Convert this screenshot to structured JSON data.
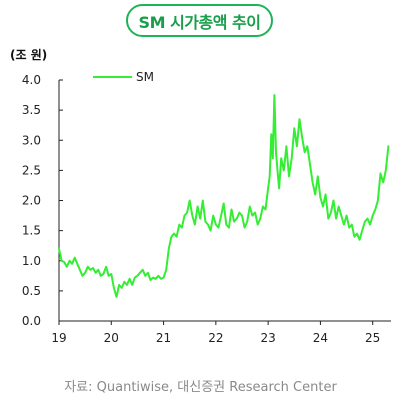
{
  "title": "SM 시가총액 추이",
  "unit": "(조 원)",
  "source": "자료: Quantiwise, 대신증권 Research Center",
  "accent_color": "#1eb35a",
  "chart_data": {
    "type": "line",
    "title": "SM 시가총액 추이",
    "ylabel": "(조 원)",
    "xlabel": "",
    "ylim": [
      0,
      4
    ],
    "yticks": [
      0.0,
      0.5,
      1.0,
      1.5,
      2.0,
      2.5,
      3.0,
      3.5,
      4.0
    ],
    "ytick_labels": [
      "0.0",
      "0.5",
      "1.0",
      "1.5",
      "2.0",
      "2.5",
      "3.0",
      "3.5",
      "4.0"
    ],
    "xlim": [
      2019.0,
      2025.35
    ],
    "xticks": [
      2019,
      2020,
      2021,
      2022,
      2023,
      2024,
      2025
    ],
    "xtick_labels": [
      "19",
      "20",
      "21",
      "22",
      "23",
      "24",
      "25"
    ],
    "grid": false,
    "legend_position": "top-left",
    "series": [
      {
        "name": "SM",
        "color": "#33ee33",
        "x": [
          2019.0,
          2019.05,
          2019.1,
          2019.15,
          2019.2,
          2019.25,
          2019.3,
          2019.35,
          2019.4,
          2019.45,
          2019.5,
          2019.55,
          2019.6,
          2019.65,
          2019.7,
          2019.75,
          2019.8,
          2019.85,
          2019.9,
          2019.95,
          2020.0,
          2020.05,
          2020.1,
          2020.15,
          2020.2,
          2020.25,
          2020.3,
          2020.35,
          2020.4,
          2020.45,
          2020.5,
          2020.55,
          2020.6,
          2020.65,
          2020.7,
          2020.75,
          2020.8,
          2020.85,
          2020.9,
          2020.95,
          2021.0,
          2021.05,
          2021.1,
          2021.15,
          2021.2,
          2021.25,
          2021.3,
          2021.35,
          2021.4,
          2021.45,
          2021.5,
          2021.55,
          2021.6,
          2021.65,
          2021.7,
          2021.75,
          2021.8,
          2021.85,
          2021.9,
          2021.95,
          2022.0,
          2022.05,
          2022.1,
          2022.15,
          2022.2,
          2022.25,
          2022.3,
          2022.35,
          2022.4,
          2022.45,
          2022.5,
          2022.55,
          2022.6,
          2022.65,
          2022.7,
          2022.75,
          2022.8,
          2022.85,
          2022.9,
          2022.95,
          2023.0,
          2023.03,
          2023.06,
          2023.09,
          2023.12,
          2023.15,
          2023.18,
          2023.21,
          2023.25,
          2023.3,
          2023.35,
          2023.4,
          2023.45,
          2023.5,
          2023.55,
          2023.6,
          2023.65,
          2023.7,
          2023.75,
          2023.8,
          2023.85,
          2023.9,
          2023.95,
          2024.0,
          2024.05,
          2024.1,
          2024.15,
          2024.2,
          2024.25,
          2024.3,
          2024.35,
          2024.4,
          2024.45,
          2024.5,
          2024.55,
          2024.6,
          2024.65,
          2024.7,
          2024.75,
          2024.8,
          2024.85,
          2024.9,
          2024.95,
          2025.0,
          2025.05,
          2025.1,
          2025.15,
          2025.2,
          2025.25,
          2025.3
        ],
        "y": [
          1.2,
          1.0,
          0.98,
          0.9,
          1.0,
          0.95,
          1.05,
          0.95,
          0.85,
          0.75,
          0.8,
          0.9,
          0.85,
          0.88,
          0.8,
          0.85,
          0.75,
          0.78,
          0.9,
          0.75,
          0.78,
          0.55,
          0.4,
          0.6,
          0.55,
          0.65,
          0.6,
          0.7,
          0.6,
          0.72,
          0.75,
          0.8,
          0.85,
          0.75,
          0.8,
          0.68,
          0.72,
          0.7,
          0.75,
          0.7,
          0.72,
          0.85,
          1.2,
          1.4,
          1.45,
          1.4,
          1.6,
          1.55,
          1.75,
          1.8,
          2.0,
          1.75,
          1.6,
          1.9,
          1.7,
          2.0,
          1.65,
          1.6,
          1.5,
          1.75,
          1.6,
          1.55,
          1.75,
          1.95,
          1.6,
          1.55,
          1.85,
          1.65,
          1.7,
          1.8,
          1.75,
          1.55,
          1.65,
          1.9,
          1.75,
          1.8,
          1.6,
          1.7,
          1.9,
          1.85,
          2.2,
          2.4,
          3.1,
          2.7,
          3.75,
          2.8,
          2.5,
          2.2,
          2.7,
          2.5,
          2.9,
          2.4,
          2.7,
          3.2,
          2.9,
          3.35,
          3.05,
          2.8,
          2.9,
          2.6,
          2.3,
          2.1,
          2.4,
          2.05,
          1.9,
          2.1,
          1.7,
          1.8,
          2.0,
          1.7,
          1.9,
          1.75,
          1.6,
          1.75,
          1.55,
          1.6,
          1.4,
          1.45,
          1.35,
          1.5,
          1.65,
          1.7,
          1.6,
          1.75,
          1.85,
          2.0,
          2.45,
          2.3,
          2.5,
          2.9
        ]
      }
    ]
  }
}
